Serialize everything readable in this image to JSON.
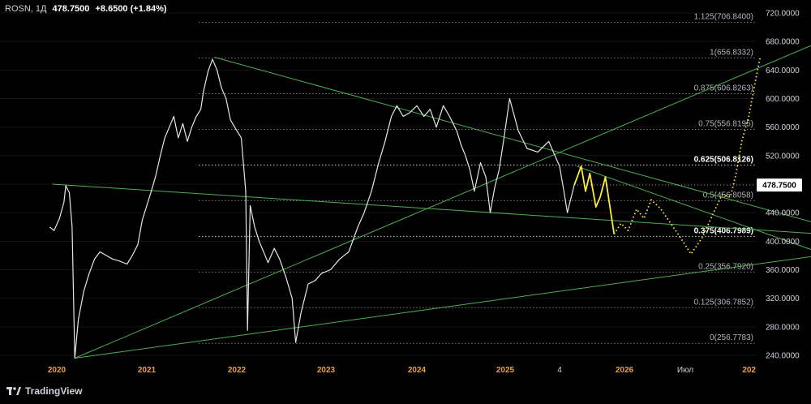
{
  "header": {
    "symbol": "ROSN, 1Д",
    "last": "478.7500",
    "change": "+8.6500 (+1.84%)"
  },
  "brand": {
    "name": "TradingView"
  },
  "chart_data": {
    "type": "line",
    "ylim": [
      230,
      720
    ],
    "y_ticks": [
      "720.0000",
      "680.0000",
      "640.0000",
      "600.0000",
      "560.0000",
      "520.0000",
      "480.0000",
      "440.0000",
      "400.0000",
      "360.0000",
      "320.0000",
      "280.0000",
      "240.0000"
    ],
    "x_ticks": [
      "2020",
      "2021",
      "2022",
      "2023",
      "2024",
      "2025",
      "4",
      "2026",
      "Июл",
      "202"
    ],
    "current_price_label": "478.7500",
    "colors": {
      "price": "#e6e6e6",
      "trendlines": "#4caf50",
      "projection": "#ffeb3b",
      "fib": "#b2b5be",
      "axis_text": "#d1d4dc",
      "year_text": "#e8a33d"
    },
    "fib_levels": [
      {
        "ratio": 1.125,
        "price": 706.84,
        "label": "1.125(706.8400)",
        "bold": false
      },
      {
        "ratio": 1,
        "price": 656.8332,
        "label": "1(656.8332)",
        "bold": false
      },
      {
        "ratio": 0.875,
        "price": 606.8263,
        "label": "0.875(606.8263)",
        "bold": false
      },
      {
        "ratio": 0.75,
        "price": 556.8195,
        "label": "0.75(556.8195)",
        "bold": false
      },
      {
        "ratio": 0.625,
        "price": 506.8126,
        "label": "0.625(506.8126)",
        "bold": true
      },
      {
        "ratio": 0.5,
        "price": 456.8058,
        "label": "0.5(456.8058)",
        "bold": false
      },
      {
        "ratio": 0.375,
        "price": 406.7989,
        "label": "0.375(406.7989)",
        "bold": true
      },
      {
        "ratio": 0.25,
        "price": 356.792,
        "label": "0.25(356.7920)",
        "bold": false
      },
      {
        "ratio": 0.125,
        "price": 306.7852,
        "label": "0.125(306.7852)",
        "bold": false
      },
      {
        "ratio": 0,
        "price": 256.7783,
        "label": "0(256.7783)",
        "bold": false
      }
    ],
    "price_series": [
      [
        2019.92,
        420
      ],
      [
        2019.97,
        415
      ],
      [
        2020.03,
        432
      ],
      [
        2020.08,
        455
      ],
      [
        2020.1,
        478
      ],
      [
        2020.14,
        468
      ],
      [
        2020.17,
        420
      ],
      [
        2020.2,
        236
      ],
      [
        2020.24,
        290
      ],
      [
        2020.3,
        330
      ],
      [
        2020.36,
        355
      ],
      [
        2020.42,
        375
      ],
      [
        2020.48,
        385
      ],
      [
        2020.55,
        380
      ],
      [
        2020.62,
        375
      ],
      [
        2020.7,
        372
      ],
      [
        2020.78,
        368
      ],
      [
        2020.84,
        380
      ],
      [
        2020.9,
        395
      ],
      [
        2020.95,
        430
      ],
      [
        2021.0,
        450
      ],
      [
        2021.05,
        470
      ],
      [
        2021.1,
        492
      ],
      [
        2021.15,
        520
      ],
      [
        2021.2,
        545
      ],
      [
        2021.25,
        560
      ],
      [
        2021.3,
        575
      ],
      [
        2021.35,
        545
      ],
      [
        2021.4,
        565
      ],
      [
        2021.45,
        540
      ],
      [
        2021.5,
        560
      ],
      [
        2021.55,
        575
      ],
      [
        2021.6,
        585
      ],
      [
        2021.63,
        610
      ],
      [
        2021.68,
        638
      ],
      [
        2021.73,
        655
      ],
      [
        2021.78,
        640
      ],
      [
        2021.83,
        615
      ],
      [
        2021.88,
        600
      ],
      [
        2021.93,
        570
      ],
      [
        2022.0,
        555
      ],
      [
        2022.05,
        545
      ],
      [
        2022.1,
        470
      ],
      [
        2022.12,
        275
      ],
      [
        2022.15,
        450
      ],
      [
        2022.2,
        420
      ],
      [
        2022.25,
        400
      ],
      [
        2022.3,
        385
      ],
      [
        2022.35,
        370
      ],
      [
        2022.42,
        390
      ],
      [
        2022.48,
        375
      ],
      [
        2022.55,
        350
      ],
      [
        2022.62,
        320
      ],
      [
        2022.66,
        258
      ],
      [
        2022.72,
        300
      ],
      [
        2022.8,
        340
      ],
      [
        2022.88,
        345
      ],
      [
        2022.95,
        355
      ],
      [
        2023.05,
        360
      ],
      [
        2023.15,
        375
      ],
      [
        2023.25,
        385
      ],
      [
        2023.35,
        420
      ],
      [
        2023.42,
        440
      ],
      [
        2023.5,
        470
      ],
      [
        2023.58,
        510
      ],
      [
        2023.65,
        540
      ],
      [
        2023.72,
        575
      ],
      [
        2023.78,
        590
      ],
      [
        2023.85,
        575
      ],
      [
        2023.92,
        580
      ],
      [
        2024.0,
        590
      ],
      [
        2024.08,
        575
      ],
      [
        2024.15,
        585
      ],
      [
        2024.22,
        560
      ],
      [
        2024.3,
        590
      ],
      [
        2024.37,
        575
      ],
      [
        2024.45,
        555
      ],
      [
        2024.5,
        535
      ],
      [
        2024.55,
        520
      ],
      [
        2024.6,
        500
      ],
      [
        2024.65,
        470
      ],
      [
        2024.72,
        510
      ],
      [
        2024.78,
        490
      ],
      [
        2024.83,
        440
      ],
      [
        2024.88,
        475
      ],
      [
        2024.93,
        500
      ],
      [
        2024.98,
        540
      ],
      [
        2025.02,
        600
      ],
      [
        2025.06,
        555
      ],
      [
        2025.1,
        530
      ],
      [
        2025.15,
        525
      ],
      [
        2025.2,
        540
      ],
      [
        2025.25,
        505
      ],
      [
        2025.3,
        470
      ],
      [
        2025.34,
        440
      ],
      [
        2025.38,
        460
      ],
      [
        2025.42,
        478.75
      ]
    ],
    "projection_solid": [
      [
        2025.42,
        478.75
      ],
      [
        2025.5,
        505
      ],
      [
        2025.55,
        470
      ],
      [
        2025.6,
        495
      ],
      [
        2025.67,
        448
      ],
      [
        2025.72,
        462
      ],
      [
        2025.78,
        490
      ],
      [
        2025.88,
        410
      ]
    ],
    "projection_dotted": [
      [
        2025.88,
        410
      ],
      [
        2025.96,
        425
      ],
      [
        2026.03,
        415
      ],
      [
        2026.1,
        445
      ],
      [
        2026.16,
        432
      ],
      [
        2026.22,
        458
      ],
      [
        2026.3,
        445
      ],
      [
        2026.38,
        425
      ],
      [
        2026.46,
        405
      ],
      [
        2026.54,
        382
      ],
      [
        2026.62,
        405
      ],
      [
        2026.7,
        440
      ],
      [
        2026.76,
        465
      ],
      [
        2026.82,
        462
      ],
      [
        2026.86,
        495
      ],
      [
        2026.9,
        540
      ],
      [
        2026.95,
        575
      ],
      [
        2027.0,
        628
      ],
      [
        2027.03,
        657
      ]
    ],
    "trendlines": [
      {
        "from": [
          2020.2,
          236
        ],
        "to": [
          2027.78,
          707
        ]
      },
      {
        "from": [
          2020.2,
          236
        ],
        "to": [
          2027.78,
          389
        ]
      },
      {
        "from": [
          2019.95,
          480
        ],
        "to": [
          2027.78,
          406
        ]
      },
      {
        "from": [
          2021.75,
          658
        ],
        "to": [
          2027.78,
          406
        ]
      },
      {
        "from": [
          2025.45,
          505
        ],
        "to": [
          2027.78,
          361
        ]
      }
    ]
  }
}
